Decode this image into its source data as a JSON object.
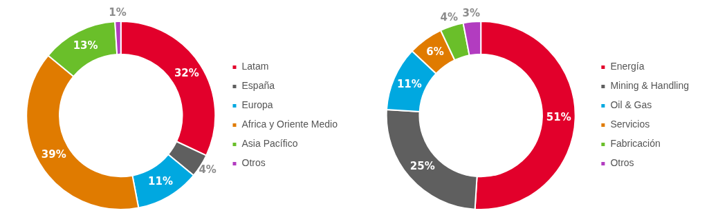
{
  "chart_data": [
    {
      "type": "donut",
      "categories": [
        "Latam",
        "España",
        "Europa",
        "Africa y Oriente Medio",
        "Asia Pacífico",
        "Otros"
      ],
      "values": [
        32,
        4,
        11,
        39,
        13,
        1
      ],
      "colors": [
        "#e2002b",
        "#5f5f5f",
        "#00a8e0",
        "#e07b00",
        "#6abf2a",
        "#b23cc0"
      ],
      "value_labels": [
        "32%",
        "4%",
        "11%",
        "39%",
        "13%",
        "1%"
      ],
      "legend": "right"
    },
    {
      "type": "donut",
      "categories": [
        "Energía",
        "Mining & Handling",
        "Oil & Gas",
        "Servicios",
        "Fabricación",
        "Otros"
      ],
      "values": [
        51,
        25,
        11,
        6,
        4,
        3
      ],
      "colors": [
        "#e2002b",
        "#5f5f5f",
        "#00a8e0",
        "#e07b00",
        "#6abf2a",
        "#b23cc0"
      ],
      "value_labels": [
        "51%",
        "25%",
        "11%",
        "6%",
        "4%",
        "3%"
      ],
      "legend": "right"
    }
  ]
}
